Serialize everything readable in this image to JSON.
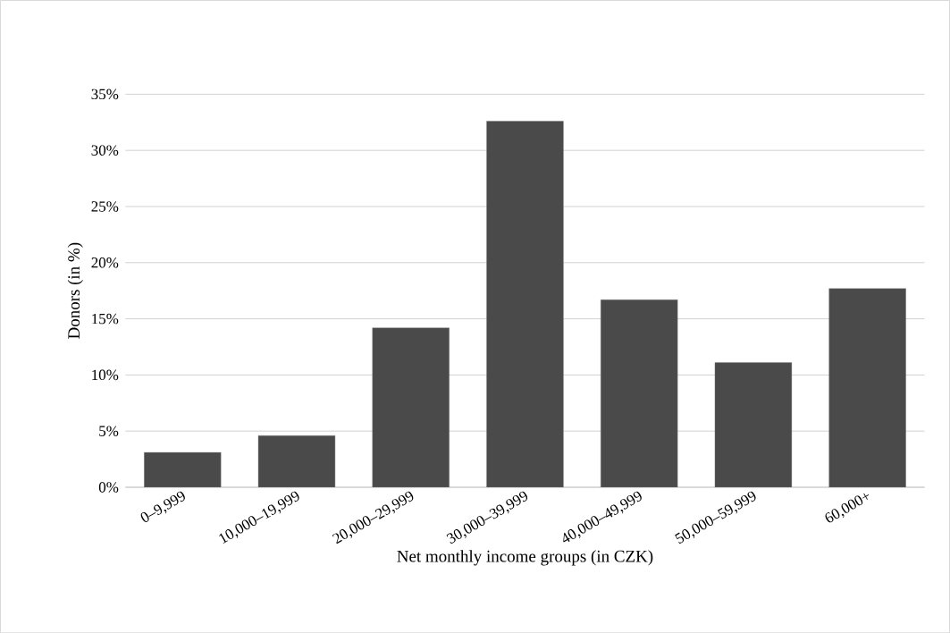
{
  "chart_data": {
    "type": "bar",
    "categories": [
      "0–9,999",
      "10,000–19,999",
      "20,000–29,999",
      "30,000–39,999",
      "40,000–49,999",
      "50,000–59,999",
      "60,000+"
    ],
    "values": [
      3.1,
      4.6,
      14.2,
      32.6,
      16.7,
      11.1,
      17.7
    ],
    "color": "#4a4a4a",
    "xlabel": "Net monthly income groups (in CZK)",
    "ylabel": "Donors (in %)",
    "ylim": [
      0,
      35
    ],
    "yticks": [
      {
        "value": 0,
        "label": "0%"
      },
      {
        "value": 5,
        "label": "5%"
      },
      {
        "value": 10,
        "label": "10%"
      },
      {
        "value": 15,
        "label": "15%"
      },
      {
        "value": 20,
        "label": "20%"
      },
      {
        "value": 25,
        "label": "25%"
      },
      {
        "value": 30,
        "label": "30%"
      },
      {
        "value": 35,
        "label": "35%"
      }
    ],
    "grid": "y"
  }
}
